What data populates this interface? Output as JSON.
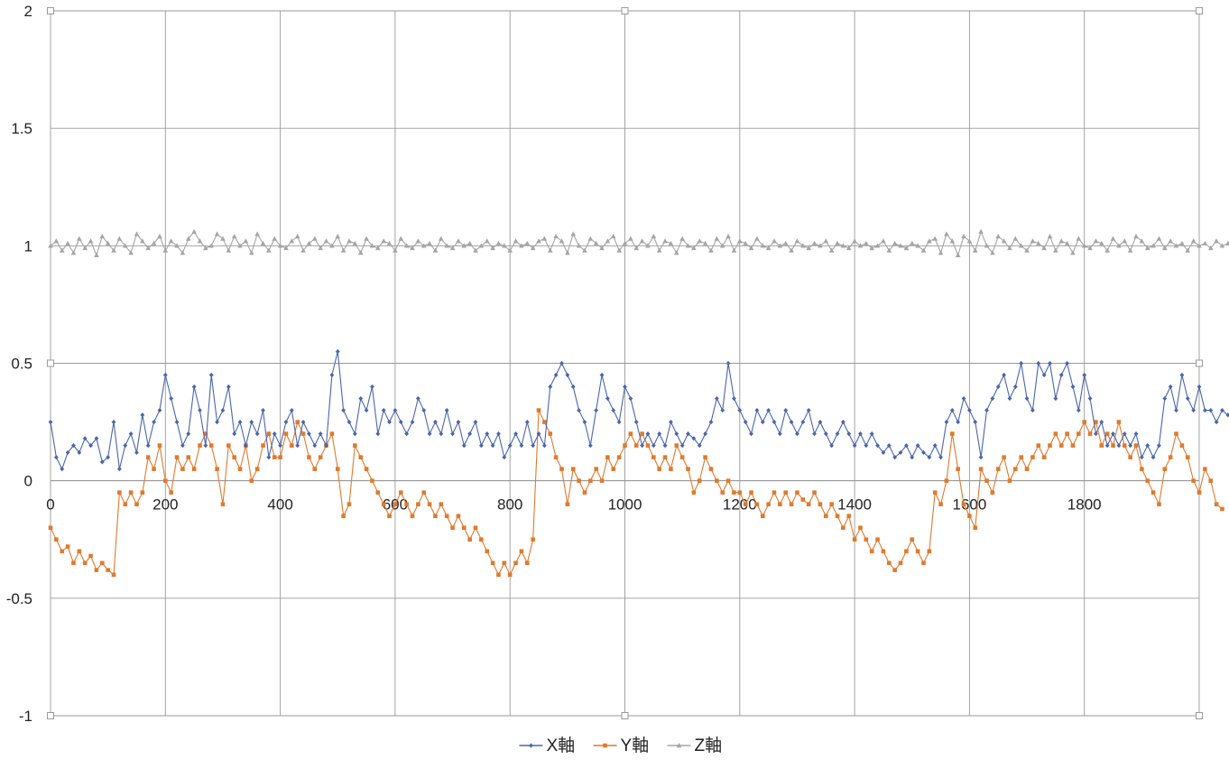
{
  "chart_data": {
    "type": "line",
    "title": "",
    "xlabel": "",
    "ylabel": "",
    "xlim": [
      0,
      2000
    ],
    "ylim": [
      -1,
      2
    ],
    "x_ticks": [
      0,
      200,
      400,
      600,
      800,
      1000,
      1200,
      1400,
      1600,
      1800
    ],
    "x_tick_labels": [
      "0",
      "200",
      "400",
      "600",
      "800",
      "1000",
      "1200",
      "1400",
      "1600",
      "1800"
    ],
    "y_ticks": [
      -1,
      -0.5,
      0,
      0.5,
      1,
      1.5,
      2
    ],
    "y_tick_labels": [
      "-1",
      "-0.5",
      "0",
      "0.5",
      "1",
      "1.5",
      "2"
    ],
    "grid": true,
    "legend_position": "bottom",
    "sample_step": 10,
    "series": [
      {
        "name": "X軸",
        "color": "#4A66AC",
        "marker": "diamond",
        "values": [
          0.25,
          0.1,
          0.05,
          0.12,
          0.15,
          0.12,
          0.18,
          0.15,
          0.18,
          0.08,
          0.1,
          0.25,
          0.05,
          0.15,
          0.2,
          0.12,
          0.28,
          0.15,
          0.25,
          0.3,
          0.45,
          0.35,
          0.25,
          0.15,
          0.2,
          0.4,
          0.3,
          0.15,
          0.45,
          0.25,
          0.3,
          0.4,
          0.2,
          0.25,
          0.15,
          0.25,
          0.2,
          0.3,
          0.1,
          0.2,
          0.15,
          0.25,
          0.3,
          0.15,
          0.25,
          0.2,
          0.15,
          0.2,
          0.15,
          0.45,
          0.55,
          0.3,
          0.25,
          0.2,
          0.35,
          0.3,
          0.4,
          0.2,
          0.3,
          0.25,
          0.3,
          0.25,
          0.2,
          0.25,
          0.35,
          0.3,
          0.2,
          0.25,
          0.2,
          0.3,
          0.2,
          0.25,
          0.15,
          0.2,
          0.25,
          0.15,
          0.2,
          0.15,
          0.2,
          0.1,
          0.15,
          0.2,
          0.15,
          0.25,
          0.15,
          0.2,
          0.15,
          0.4,
          0.45,
          0.5,
          0.45,
          0.4,
          0.3,
          0.25,
          0.15,
          0.3,
          0.45,
          0.35,
          0.3,
          0.25,
          0.4,
          0.35,
          0.25,
          0.15,
          0.2,
          0.15,
          0.2,
          0.15,
          0.25,
          0.2,
          0.15,
          0.2,
          0.18,
          0.15,
          0.2,
          0.25,
          0.35,
          0.3,
          0.5,
          0.35,
          0.3,
          0.25,
          0.2,
          0.3,
          0.25,
          0.3,
          0.25,
          0.2,
          0.3,
          0.25,
          0.2,
          0.25,
          0.3,
          0.2,
          0.25,
          0.2,
          0.15,
          0.2,
          0.25,
          0.2,
          0.15,
          0.2,
          0.15,
          0.2,
          0.15,
          0.12,
          0.15,
          0.1,
          0.12,
          0.15,
          0.1,
          0.15,
          0.12,
          0.1,
          0.15,
          0.1,
          0.25,
          0.3,
          0.25,
          0.35,
          0.3,
          0.25,
          0.1,
          0.3,
          0.35,
          0.4,
          0.45,
          0.35,
          0.4,
          0.5,
          0.35,
          0.3,
          0.5,
          0.45,
          0.5,
          0.35,
          0.45,
          0.5,
          0.4,
          0.3,
          0.45,
          0.35,
          0.2,
          0.25,
          0.15,
          0.2,
          0.15,
          0.2,
          0.15,
          0.2,
          0.1,
          0.15,
          0.1,
          0.15,
          0.35,
          0.4,
          0.3,
          0.45,
          0.35,
          0.3,
          0.4,
          0.3,
          0.3,
          0.25,
          0.3,
          0.28
        ]
      },
      {
        "name": "Y軸",
        "color": "#E07A2E",
        "marker": "square",
        "values": [
          -0.2,
          -0.25,
          -0.3,
          -0.28,
          -0.35,
          -0.3,
          -0.35,
          -0.32,
          -0.38,
          -0.35,
          -0.38,
          -0.4,
          -0.05,
          -0.1,
          -0.05,
          -0.1,
          -0.05,
          0.1,
          0.05,
          0.15,
          0.0,
          -0.05,
          0.1,
          0.05,
          0.1,
          0.05,
          0.15,
          0.2,
          0.15,
          0.05,
          -0.1,
          0.15,
          0.1,
          0.05,
          0.15,
          0.0,
          0.05,
          0.15,
          0.2,
          0.1,
          0.1,
          0.2,
          0.15,
          0.25,
          0.2,
          0.1,
          0.05,
          0.1,
          0.15,
          0.2,
          0.05,
          -0.15,
          -0.1,
          0.15,
          0.1,
          0.05,
          0.0,
          -0.05,
          -0.1,
          -0.15,
          -0.1,
          -0.05,
          -0.1,
          -0.15,
          -0.1,
          -0.05,
          -0.1,
          -0.15,
          -0.1,
          -0.15,
          -0.2,
          -0.15,
          -0.2,
          -0.25,
          -0.2,
          -0.25,
          -0.3,
          -0.35,
          -0.4,
          -0.35,
          -0.4,
          -0.35,
          -0.3,
          -0.35,
          -0.25,
          0.3,
          0.25,
          0.2,
          0.1,
          0.05,
          -0.1,
          0.05,
          0.0,
          -0.05,
          0.0,
          0.05,
          0.0,
          0.1,
          0.05,
          0.1,
          0.15,
          0.2,
          0.15,
          0.2,
          0.15,
          0.1,
          0.05,
          0.1,
          0.05,
          0.15,
          0.1,
          0.05,
          -0.05,
          0.0,
          0.1,
          0.05,
          0.0,
          -0.05,
          0.0,
          -0.05,
          -0.05,
          -0.1,
          -0.05,
          -0.1,
          -0.15,
          -0.1,
          -0.05,
          -0.1,
          -0.05,
          -0.1,
          -0.05,
          -0.08,
          -0.1,
          -0.05,
          -0.1,
          -0.15,
          -0.1,
          -0.15,
          -0.2,
          -0.15,
          -0.25,
          -0.2,
          -0.25,
          -0.3,
          -0.25,
          -0.3,
          -0.35,
          -0.38,
          -0.35,
          -0.3,
          -0.25,
          -0.3,
          -0.35,
          -0.3,
          -0.05,
          -0.1,
          0.0,
          0.2,
          0.05,
          -0.1,
          -0.15,
          -0.2,
          0.05,
          0.0,
          -0.05,
          0.05,
          0.1,
          0.0,
          0.05,
          0.1,
          0.05,
          0.1,
          0.15,
          0.1,
          0.15,
          0.2,
          0.15,
          0.2,
          0.15,
          0.2,
          0.25,
          0.2,
          0.25,
          0.15,
          0.2,
          0.15,
          0.25,
          0.15,
          0.1,
          0.15,
          0.05,
          0.0,
          -0.05,
          -0.1,
          0.05,
          0.1,
          0.2,
          0.15,
          0.1,
          0.0,
          -0.05,
          0.05,
          0.0,
          -0.1,
          -0.12
        ]
      },
      {
        "name": "Z軸",
        "color": "#A5A5A5",
        "marker": "triangle",
        "values": [
          1.0,
          1.02,
          0.98,
          1.01,
          0.97,
          1.03,
          0.99,
          1.02,
          0.96,
          1.04,
          1.01,
          0.98,
          1.03,
          1.0,
          0.97,
          1.05,
          1.02,
          0.99,
          1.01,
          1.04,
          0.98,
          1.02,
          1.0,
          0.97,
          1.03,
          1.06,
          1.02,
          0.99,
          1.0,
          1.05,
          1.03,
          0.98,
          1.04,
          1.0,
          1.02,
          0.97,
          1.05,
          1.01,
          0.98,
          1.03,
          1.0,
          0.99,
          1.02,
          1.04,
          0.98,
          1.01,
          1.03,
          0.99,
          1.02,
          1.0,
          1.04,
          0.98,
          1.02,
          1.01,
          0.97,
          1.03,
          1.0,
          0.99,
          1.02,
          1.01,
          0.98,
          1.03,
          1.0,
          0.99,
          1.02,
          1.0,
          1.01,
          0.98,
          1.03,
          1.0,
          0.99,
          1.02,
          1.0,
          1.01,
          0.98,
          1.0,
          1.02,
          0.99,
          1.01,
          1.0,
          0.98,
          1.02,
          1.0,
          1.01,
          0.99,
          1.02,
          1.03,
          0.98,
          1.04,
          1.02,
          0.97,
          1.05,
          1.0,
          0.98,
          1.03,
          1.01,
          0.99,
          1.02,
          1.04,
          0.98,
          1.01,
          1.03,
          0.99,
          1.02,
          1.0,
          1.04,
          0.98,
          1.02,
          1.01,
          0.97,
          1.03,
          1.0,
          0.99,
          1.02,
          1.01,
          0.98,
          1.03,
          1.0,
          1.04,
          0.98,
          1.02,
          1.01,
          0.99,
          1.03,
          1.0,
          0.99,
          1.02,
          1.0,
          1.01,
          0.98,
          1.02,
          1.0,
          0.99,
          1.01,
          1.0,
          1.02,
          0.98,
          1.01,
          1.0,
          0.99,
          1.02,
          1.0,
          1.01,
          0.99,
          1.0,
          1.02,
          0.98,
          1.01,
          1.0,
          0.99,
          1.01,
          1.0,
          0.98,
          1.02,
          1.03,
          0.97,
          1.05,
          1.02,
          0.96,
          1.04,
          1.02,
          0.98,
          1.06,
          1.0,
          0.97,
          1.04,
          1.02,
          0.99,
          1.03,
          1.0,
          0.98,
          1.02,
          1.01,
          0.99,
          1.04,
          0.98,
          1.02,
          1.01,
          0.97,
          1.03,
          1.0,
          0.99,
          1.02,
          1.01,
          0.98,
          1.03,
          1.0,
          1.02,
          0.98,
          1.04,
          1.02,
          0.99,
          1.0,
          1.03,
          0.99,
          1.02,
          1.0,
          1.01,
          0.98,
          1.02,
          1.0,
          1.01,
          0.99,
          1.02,
          1.0,
          1.01
        ]
      }
    ]
  }
}
